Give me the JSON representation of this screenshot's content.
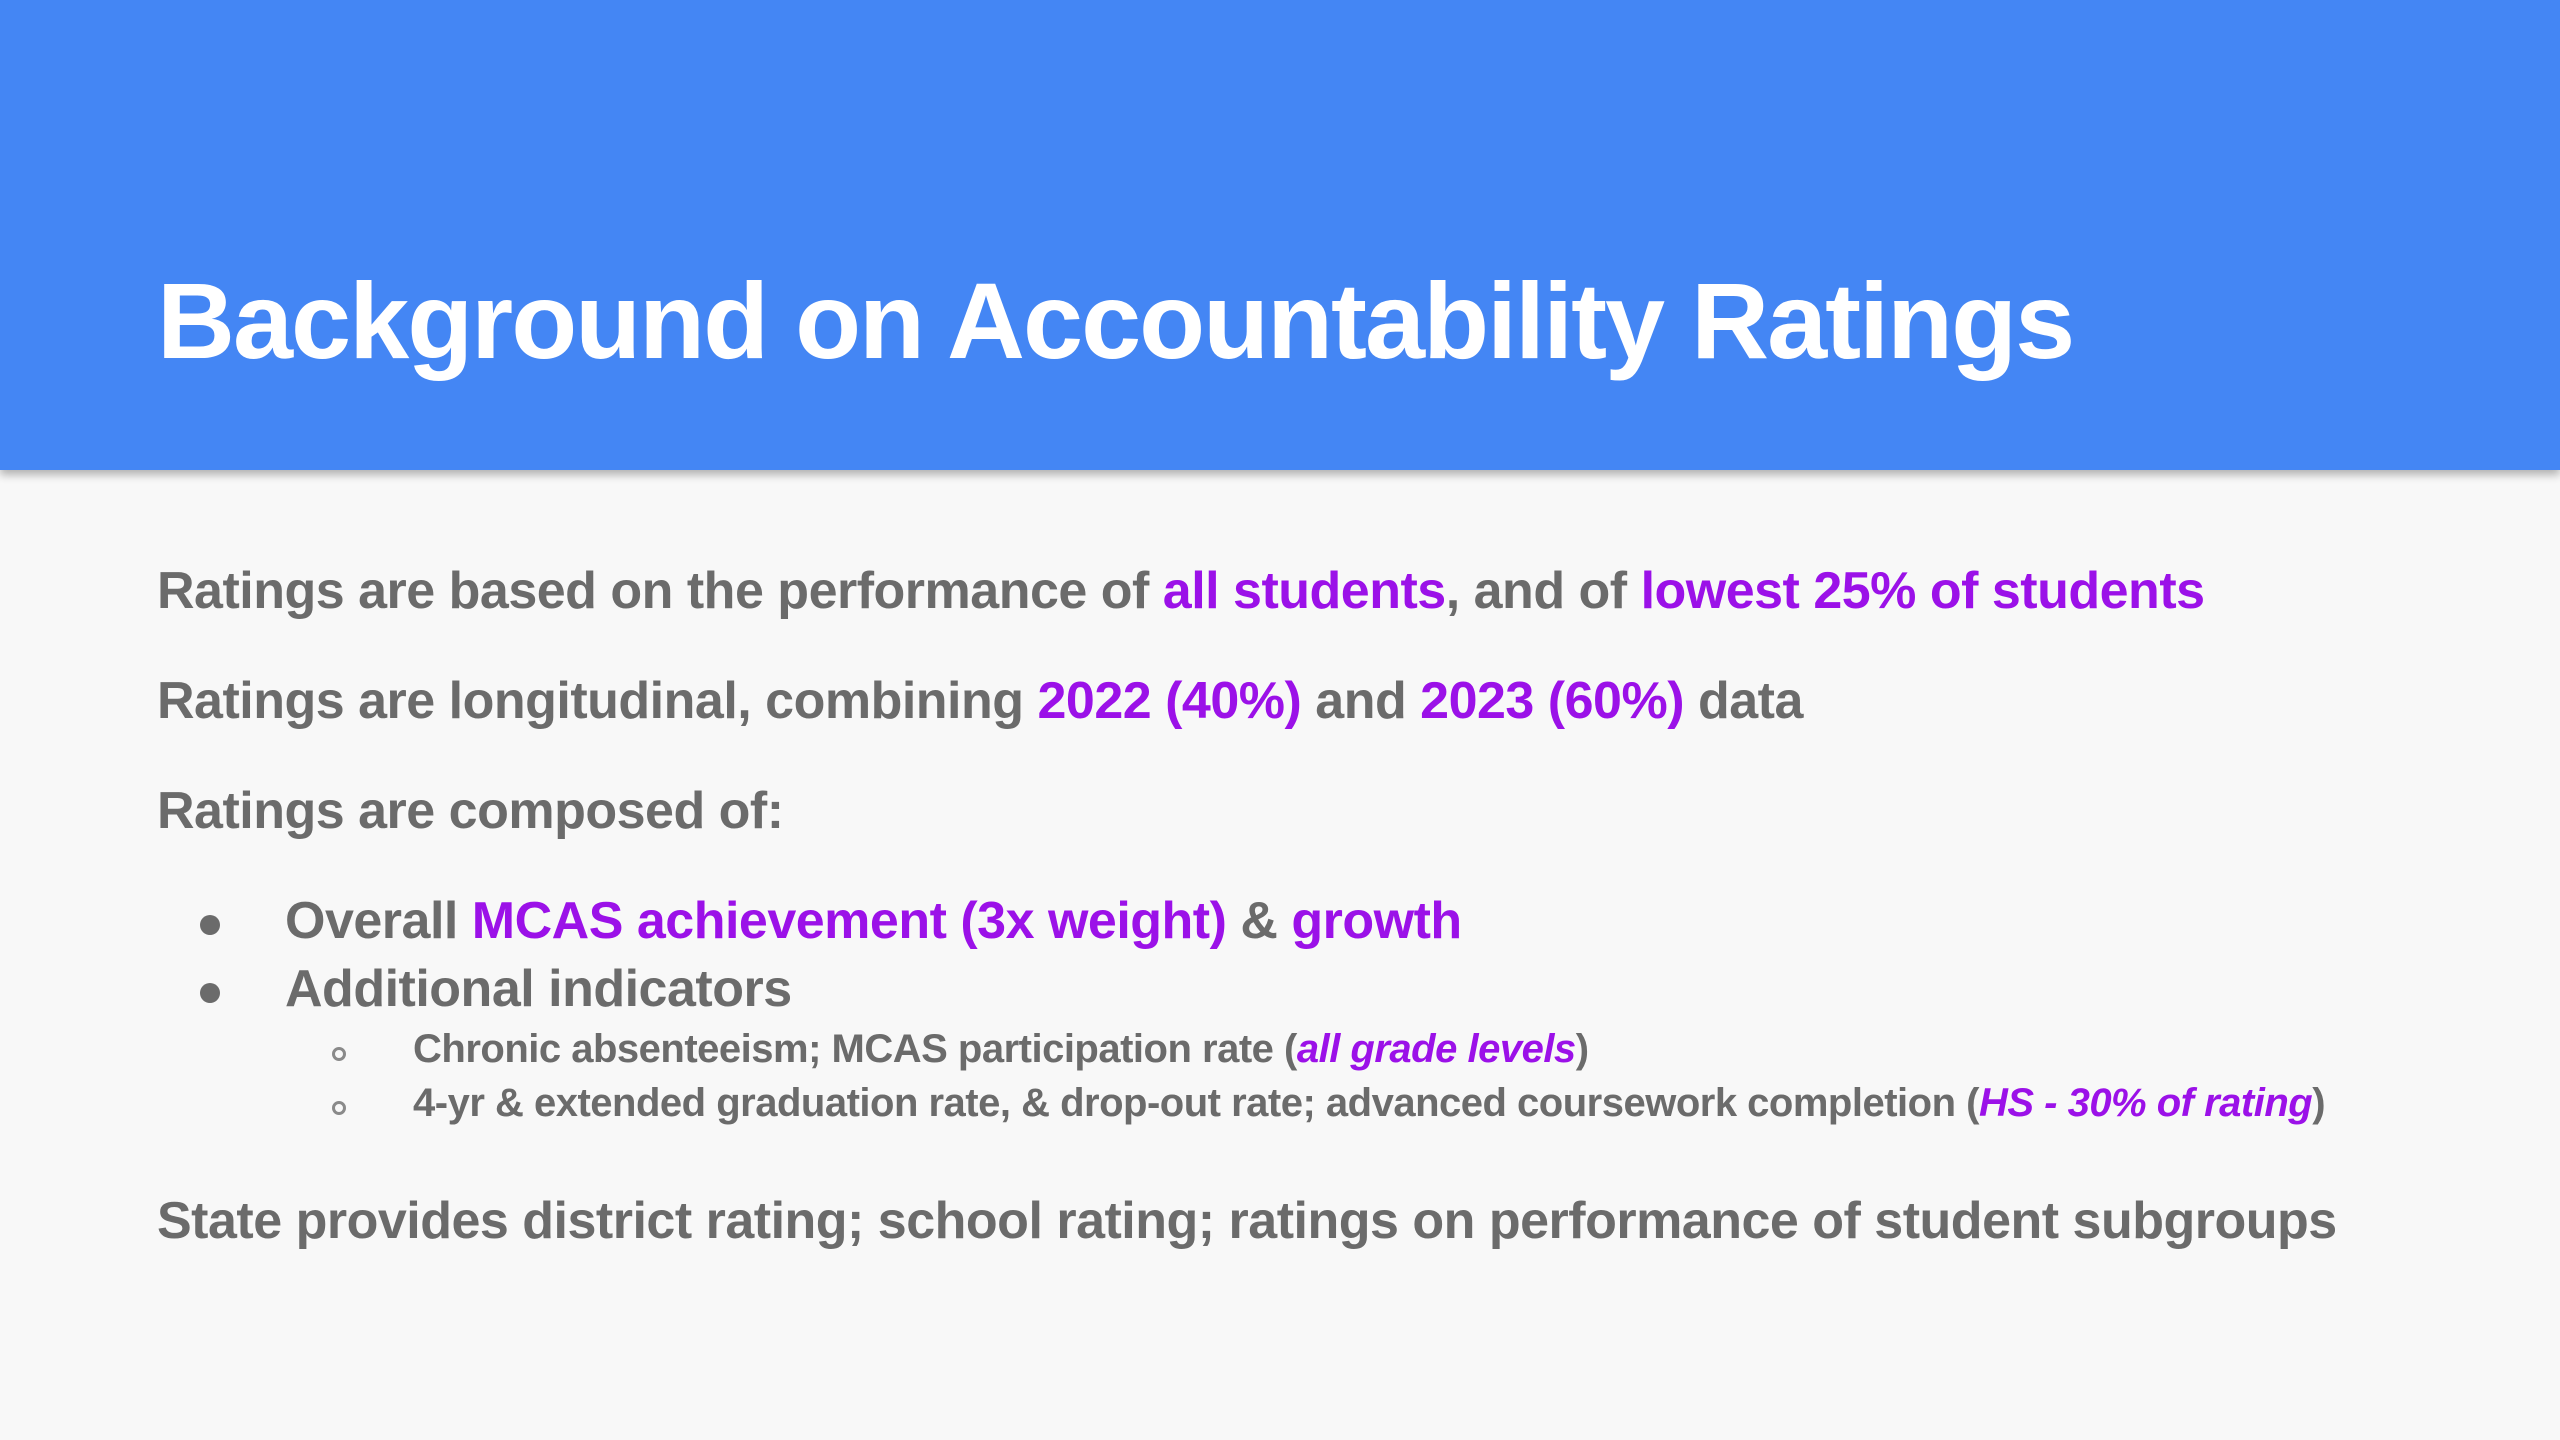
{
  "slide": {
    "title": "Background on Accountability Ratings",
    "colors": {
      "header": "#4486f4",
      "highlight": "#9b11e8",
      "text": "#6b6b6b"
    },
    "line1": {
      "a": "Ratings are based on the performance of ",
      "b": "all students",
      "c": ", and of ",
      "d": "lowest 25% of students"
    },
    "line2": {
      "a": "Ratings are longitudinal, combining  ",
      "b": "2022 (40%)",
      "c": " and ",
      "d": "2023 (60%)",
      "e": " data"
    },
    "line3": "Ratings are composed of:",
    "bullet1": {
      "a": "Overall ",
      "b": "MCAS achievement (3x weight)",
      "c": " & ",
      "d": "growth"
    },
    "bullet2": "Additional indicators",
    "sub1": {
      "a": "Chronic absenteeism; MCAS participation rate (",
      "b": "all grade levels",
      "c": ")"
    },
    "sub2": {
      "a": "4-yr & extended graduation rate, & drop-out rate; advanced coursework completion (",
      "b": "HS - 30% of rating",
      "c": ")"
    },
    "line4": "State provides district rating; school rating; ratings on performance of student subgroups"
  }
}
